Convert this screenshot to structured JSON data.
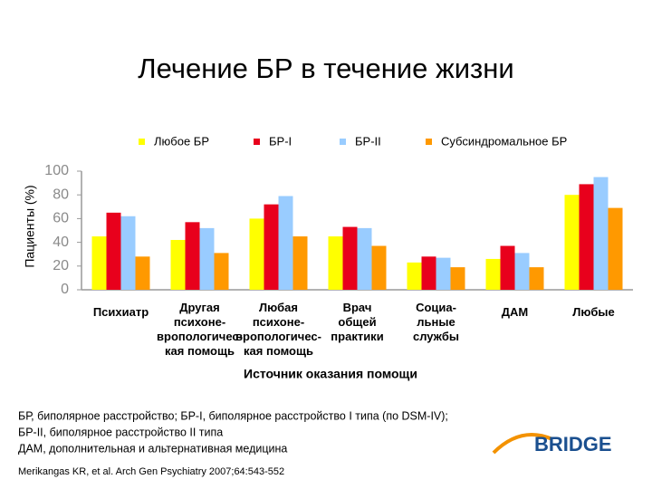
{
  "chart_data": {
    "type": "bar",
    "title": "Лечение БР в течение жизни",
    "y_label": "Пациенты (%)",
    "x_label": "Источник оказания помощи",
    "categories": [
      [
        "Психиатр"
      ],
      [
        "Другая",
        "психоне-",
        "вропологичес-",
        "кая помощь"
      ],
      [
        "Любая",
        "психоне-",
        "вропологичес-",
        "кая помощь"
      ],
      [
        "Врач",
        "общей",
        "практики"
      ],
      [
        "Социа-",
        "льные",
        "службы"
      ],
      [
        "ДАМ"
      ],
      [
        "Любые"
      ]
    ],
    "series": [
      {
        "name": "Любое БР",
        "color": "#ffff00",
        "values": [
          45,
          42,
          60,
          45,
          23,
          26,
          80
        ]
      },
      {
        "name": "БР-I",
        "color": "#e8001c",
        "values": [
          65,
          57,
          72,
          53,
          28,
          37,
          89
        ]
      },
      {
        "name": "БР-II",
        "color": "#99ccff",
        "values": [
          62,
          52,
          79,
          52,
          27,
          31,
          95
        ]
      },
      {
        "name": "Субсиндромальное БР",
        "color": "#ff9900",
        "values": [
          28,
          31,
          45,
          37,
          19,
          19,
          69
        ]
      }
    ],
    "ylim": [
      0,
      100
    ],
    "yticks": [
      0,
      20,
      40,
      60,
      80,
      100
    ]
  },
  "footnotes": [
    "БР, биполярное расстройство; БР-I, биполярное расстройство I типа (по DSM-IV);",
    "БР-II, биполярное расстройство II типа",
    "ДАМ, дополнительная и альтернативная медицина"
  ],
  "source": "Merikangas KR, et al. Arch Gen Psychiatry 2007;64:543-552",
  "logo": "BRIDGE"
}
